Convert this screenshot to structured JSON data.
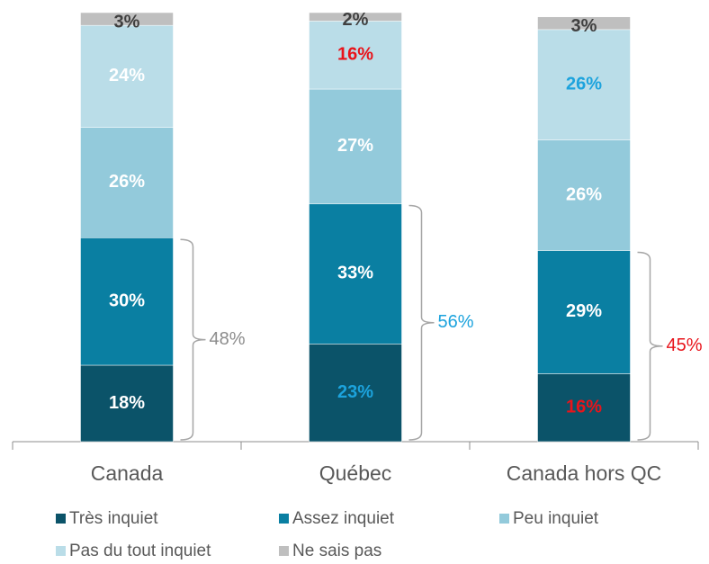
{
  "chart_data": {
    "type": "stacked_bar",
    "categories": [
      "Canada",
      "Québec",
      "Canada hors QC"
    ],
    "series": [
      {
        "name": "Très inquiet",
        "color": "#0b5369",
        "values": [
          18,
          23,
          16
        ],
        "value_labels": [
          "18%",
          "23%",
          "16%"
        ],
        "label_colors": [
          "#ffffff",
          "#1ca3dd",
          "#e8141b"
        ]
      },
      {
        "name": "Assez inquiet",
        "color": "#0a7fa2",
        "values": [
          30,
          33,
          29
        ],
        "value_labels": [
          "30%",
          "33%",
          "29%"
        ],
        "label_colors": [
          "#ffffff",
          "#ffffff",
          "#ffffff"
        ]
      },
      {
        "name": "Peu inquiet",
        "color": "#93cadb",
        "values": [
          26,
          27,
          26
        ],
        "value_labels": [
          "26%",
          "27%",
          "26%"
        ],
        "label_colors": [
          "#ffffff",
          "#ffffff",
          "#ffffff"
        ]
      },
      {
        "name": "Pas du tout inquiet",
        "color": "#badde8",
        "values": [
          24,
          16,
          26
        ],
        "value_labels": [
          "24%",
          "16%",
          "26%"
        ],
        "label_colors": [
          "#ffffff",
          "#e8141b",
          "#1ca3dd"
        ]
      },
      {
        "name": "Ne sais pas",
        "color": "#bfbfbf",
        "values": [
          3,
          2,
          3
        ],
        "value_labels": [
          "3%",
          "2%",
          "3%"
        ],
        "label_colors": [
          "#404040",
          "#404040",
          "#404040"
        ]
      }
    ],
    "ylim": [
      0,
      101
    ],
    "annotations": [
      {
        "text": "48%",
        "color": "#8c8c8c"
      },
      {
        "text": "56%",
        "color": "#1ca3dd"
      },
      {
        "text": "45%",
        "color": "#e8141b"
      }
    ],
    "legend": "bottom"
  }
}
